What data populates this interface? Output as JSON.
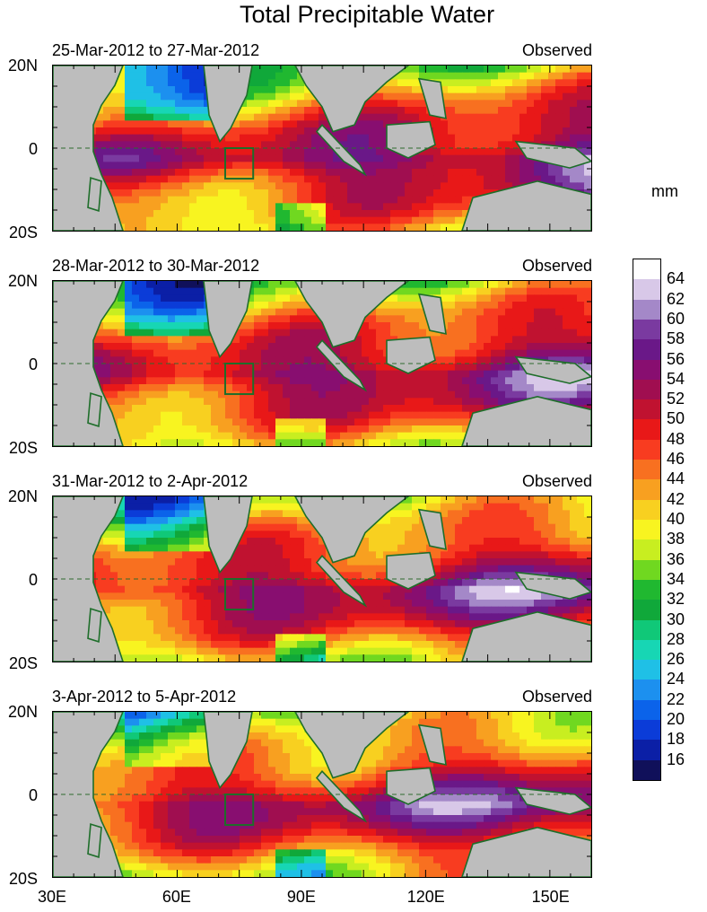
{
  "title": "Total Precipitable Water",
  "units": "mm",
  "chart_data": [
    {
      "type": "heatmap",
      "date_range": "25-Mar-2012 to 27-Mar-2012",
      "source": "Observed",
      "lon_range": [
        30,
        160
      ],
      "lat_range": [
        -20,
        20
      ],
      "lat_ticks": [
        "20N",
        "0",
        "20S"
      ],
      "lon_ticks": []
    },
    {
      "type": "heatmap",
      "date_range": "28-Mar-2012 to 30-Mar-2012",
      "source": "Observed",
      "lon_range": [
        30,
        160
      ],
      "lat_range": [
        -20,
        20
      ],
      "lat_ticks": [
        "20N",
        "0",
        "20S"
      ],
      "lon_ticks": []
    },
    {
      "type": "heatmap",
      "date_range": "31-Mar-2012 to 2-Apr-2012",
      "source": "Observed",
      "lon_range": [
        30,
        160
      ],
      "lat_range": [
        -20,
        20
      ],
      "lat_ticks": [
        "20N",
        "0",
        "20S"
      ],
      "lon_ticks": []
    },
    {
      "type": "heatmap",
      "date_range": "3-Apr-2012 to 5-Apr-2012",
      "source": "Observed",
      "lon_range": [
        30,
        160
      ],
      "lat_range": [
        -20,
        20
      ],
      "lat_ticks": [
        "20N",
        "0",
        "20S"
      ],
      "lon_ticks": [
        "30E",
        "60E",
        "90E",
        "120E",
        "150E"
      ]
    }
  ],
  "colorbar": {
    "levels": [
      16,
      18,
      20,
      22,
      24,
      26,
      28,
      30,
      32,
      34,
      36,
      38,
      40,
      42,
      44,
      46,
      48,
      50,
      52,
      54,
      56,
      58,
      60,
      62,
      64
    ],
    "level_labels": [
      "64",
      "62",
      "60",
      "58",
      "56",
      "54",
      "52",
      "50",
      "48",
      "46",
      "44",
      "42",
      "40",
      "38",
      "36",
      "34",
      "32",
      "30",
      "28",
      "26",
      "24",
      "22",
      "20",
      "18",
      "16"
    ],
    "colors": [
      "#10105a",
      "#0b1fa6",
      "#0b3cd8",
      "#0b63ea",
      "#1c90ef",
      "#1fc0e6",
      "#17d6b4",
      "#10c878",
      "#10a83a",
      "#20b830",
      "#70d820",
      "#c8ee20",
      "#f8f420",
      "#f8d020",
      "#f8a020",
      "#f87020",
      "#f83c20",
      "#e81818",
      "#c01230",
      "#a00e50",
      "#880e70",
      "#6a1888",
      "#7a3aa0",
      "#a488c8",
      "#d8c8e8",
      "#ffffff"
    ]
  }
}
